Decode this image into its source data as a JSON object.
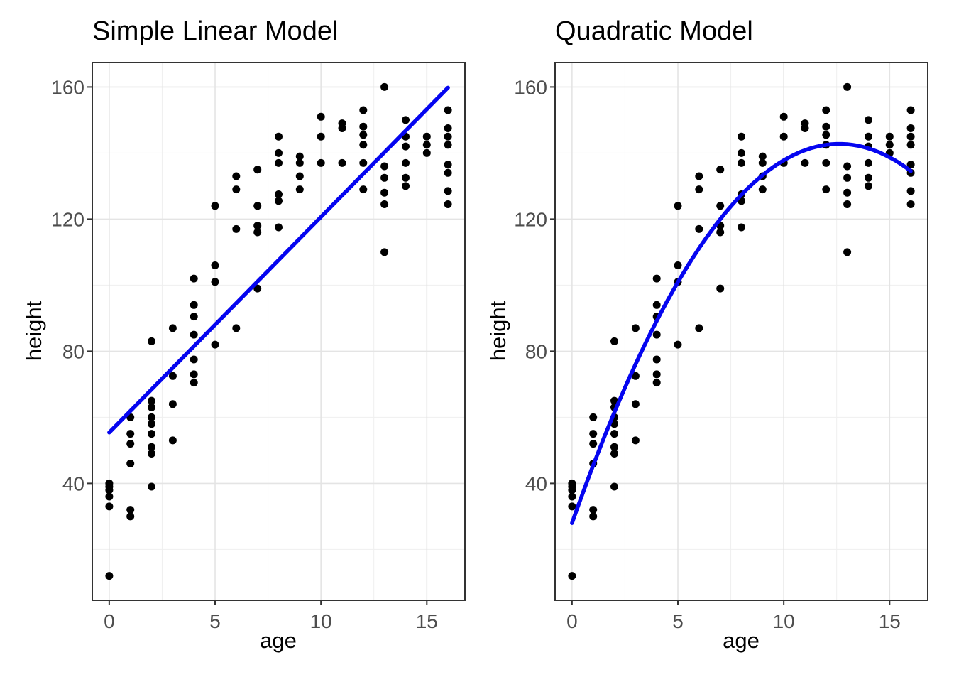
{
  "figure": {
    "background": "#FFFFFF"
  },
  "chart_data": {
    "type": "scatter",
    "shared": {
      "xlabel": "age",
      "ylabel": "height",
      "x_ticks": [
        0,
        5,
        10,
        15
      ],
      "y_ticks": [
        40,
        80,
        120,
        160
      ],
      "x_minor": [
        2.5,
        7.5,
        12.5
      ],
      "y_minor": [
        20,
        60,
        100,
        140
      ],
      "xlim": [
        -0.8,
        16.8
      ],
      "ylim": [
        4.6,
        167.4
      ],
      "points": [
        [
          0,
          40
        ],
        [
          0,
          39
        ],
        [
          0,
          38
        ],
        [
          0,
          36
        ],
        [
          0,
          33
        ],
        [
          0,
          12
        ],
        [
          1,
          60
        ],
        [
          1,
          55
        ],
        [
          1,
          52
        ],
        [
          1,
          46
        ],
        [
          1,
          32
        ],
        [
          1,
          30
        ],
        [
          2,
          83
        ],
        [
          2,
          65
        ],
        [
          2,
          63
        ],
        [
          2,
          60
        ],
        [
          2,
          58
        ],
        [
          2,
          55
        ],
        [
          2,
          51
        ],
        [
          2,
          49
        ],
        [
          2,
          39
        ],
        [
          3,
          87
        ],
        [
          3,
          72.5
        ],
        [
          3,
          64
        ],
        [
          3,
          53
        ],
        [
          4,
          102
        ],
        [
          4,
          94
        ],
        [
          4,
          90.5
        ],
        [
          4,
          85
        ],
        [
          4,
          77.5
        ],
        [
          4,
          73
        ],
        [
          4,
          70.5
        ],
        [
          5,
          124
        ],
        [
          5,
          106
        ],
        [
          5,
          101
        ],
        [
          5,
          82
        ],
        [
          6,
          133
        ],
        [
          6,
          129
        ],
        [
          6,
          117
        ],
        [
          6,
          87
        ],
        [
          7,
          135
        ],
        [
          7,
          124
        ],
        [
          7,
          118
        ],
        [
          7,
          116
        ],
        [
          7,
          99
        ],
        [
          8,
          145
        ],
        [
          8,
          140
        ],
        [
          8,
          137
        ],
        [
          8,
          127.5
        ],
        [
          8,
          125.5
        ],
        [
          8,
          117.5
        ],
        [
          9,
          139
        ],
        [
          9,
          137
        ],
        [
          9,
          133
        ],
        [
          9,
          129
        ],
        [
          10,
          151
        ],
        [
          10,
          145
        ],
        [
          10,
          137
        ],
        [
          11,
          149
        ],
        [
          11,
          147.5
        ],
        [
          11,
          137
        ],
        [
          12,
          153
        ],
        [
          12,
          148
        ],
        [
          12,
          145.5
        ],
        [
          12,
          142.5
        ],
        [
          12,
          137
        ],
        [
          12,
          129
        ],
        [
          13,
          160
        ],
        [
          13,
          136
        ],
        [
          13,
          132.5
        ],
        [
          13,
          128
        ],
        [
          13,
          124.5
        ],
        [
          13,
          110
        ],
        [
          14,
          150
        ],
        [
          14,
          145
        ],
        [
          14,
          142
        ],
        [
          14,
          137
        ],
        [
          14,
          132.5
        ],
        [
          14,
          130
        ],
        [
          15,
          145
        ],
        [
          15,
          142.5
        ],
        [
          15,
          140
        ],
        [
          16,
          153
        ],
        [
          16,
          147.5
        ],
        [
          16,
          145
        ],
        [
          16,
          142.5
        ],
        [
          16,
          136.5
        ],
        [
          16,
          134
        ],
        [
          16,
          128.5
        ],
        [
          16,
          124.5
        ]
      ]
    },
    "panels": [
      {
        "title": "Simple Linear Model",
        "fit": {
          "kind": "linear",
          "coeffs": [
            55.4,
            6.525
          ],
          "domain": [
            0,
            16
          ]
        }
      },
      {
        "title": "Quadratic Model",
        "fit": {
          "kind": "quadratic",
          "coeffs": [
            28,
            18.18,
            -0.72
          ],
          "domain": [
            0,
            16
          ]
        }
      }
    ],
    "colors": {
      "point": "#000000",
      "fit_line": "#0505F0",
      "grid_major": "#E4E4E4",
      "grid_minor": "#EFEFEF",
      "panel_border": "#333333",
      "tick": "#333333",
      "tick_label": "#4D4D4D",
      "title": "#000000",
      "axis_title": "#000000"
    }
  }
}
